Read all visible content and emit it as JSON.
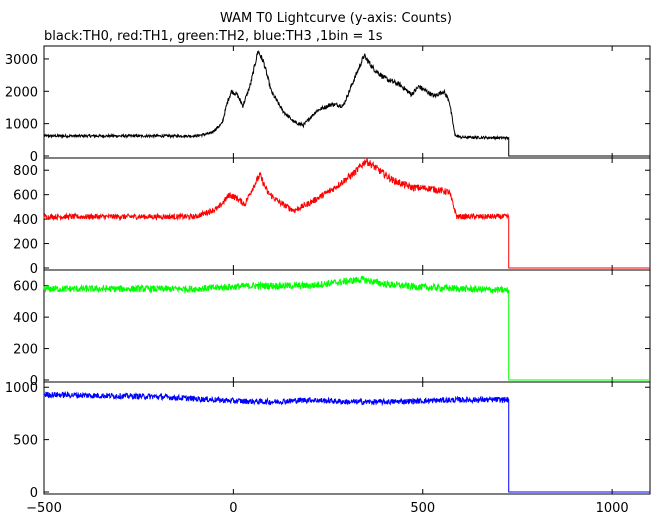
{
  "title": "WAM T0 Lightcurve (y-axis: Counts)",
  "subtitle": "black:TH0, red:TH1, green:TH2, blue:TH3 ,1bin = 1s",
  "chart_data": {
    "type": "line",
    "x_ticks": [
      -500,
      0,
      500,
      1000
    ],
    "x_tick_labels": [
      "−500",
      "0",
      "500",
      "1000"
    ],
    "xlim": [
      -500,
      1100
    ],
    "panels": [
      {
        "name": "TH0",
        "color": "#000000",
        "ylim": [
          0,
          3400
        ],
        "y_ticks": [
          0,
          1000,
          2000,
          3000
        ],
        "y_tick_labels": [
          "0",
          "1000",
          "2000",
          "3000"
        ],
        "noise": 40,
        "series_points": [
          [
            -500,
            620
          ],
          [
            -100,
            620
          ],
          [
            -60,
            700
          ],
          [
            -30,
            1000
          ],
          [
            -15,
            1700
          ],
          [
            -5,
            2000
          ],
          [
            10,
            1900
          ],
          [
            25,
            1550
          ],
          [
            45,
            2200
          ],
          [
            65,
            3250
          ],
          [
            80,
            2900
          ],
          [
            100,
            2000
          ],
          [
            130,
            1400
          ],
          [
            160,
            1050
          ],
          [
            185,
            950
          ],
          [
            220,
            1400
          ],
          [
            260,
            1600
          ],
          [
            290,
            1550
          ],
          [
            320,
            2400
          ],
          [
            345,
            3100
          ],
          [
            370,
            2700
          ],
          [
            400,
            2400
          ],
          [
            440,
            2200
          ],
          [
            470,
            1900
          ],
          [
            490,
            2150
          ],
          [
            510,
            2000
          ],
          [
            530,
            1850
          ],
          [
            555,
            2000
          ],
          [
            570,
            1700
          ],
          [
            585,
            650
          ],
          [
            600,
            580
          ],
          [
            725,
            560
          ],
          [
            727,
            0
          ],
          [
            1100,
            0
          ]
        ]
      },
      {
        "name": "TH1",
        "color": "#ff0000",
        "ylim": [
          0,
          900
        ],
        "y_ticks": [
          0,
          200,
          400,
          600,
          800
        ],
        "y_tick_labels": [
          "0",
          "200",
          "400",
          "600",
          "800"
        ],
        "noise": 22,
        "series_points": [
          [
            -500,
            420
          ],
          [
            -100,
            420
          ],
          [
            -40,
            490
          ],
          [
            -10,
            600
          ],
          [
            10,
            570
          ],
          [
            30,
            520
          ],
          [
            50,
            650
          ],
          [
            70,
            760
          ],
          [
            90,
            620
          ],
          [
            120,
            540
          ],
          [
            160,
            470
          ],
          [
            200,
            530
          ],
          [
            260,
            640
          ],
          [
            320,
            780
          ],
          [
            350,
            880
          ],
          [
            380,
            810
          ],
          [
            420,
            720
          ],
          [
            470,
            660
          ],
          [
            520,
            650
          ],
          [
            570,
            620
          ],
          [
            590,
            420
          ],
          [
            725,
            420
          ],
          [
            727,
            0
          ],
          [
            1100,
            0
          ]
        ]
      },
      {
        "name": "TH2",
        "color": "#00ff00",
        "ylim": [
          0,
          700
        ],
        "y_ticks": [
          0,
          200,
          400,
          600
        ],
        "y_tick_labels": [
          "0",
          "200",
          "400",
          "600"
        ],
        "noise": 22,
        "series_points": [
          [
            -500,
            580
          ],
          [
            -100,
            580
          ],
          [
            50,
            600
          ],
          [
            200,
            600
          ],
          [
            340,
            640
          ],
          [
            400,
            610
          ],
          [
            500,
            590
          ],
          [
            725,
            570
          ],
          [
            727,
            0
          ],
          [
            1100,
            0
          ]
        ]
      },
      {
        "name": "TH3",
        "color": "#0000ff",
        "ylim": [
          0,
          1050
        ],
        "y_ticks": [
          0,
          500,
          1000
        ],
        "y_tick_labels": [
          "0",
          "500",
          "1000"
        ],
        "noise": 28,
        "series_points": [
          [
            -500,
            930
          ],
          [
            -200,
            910
          ],
          [
            0,
            870
          ],
          [
            100,
            860
          ],
          [
            200,
            880
          ],
          [
            300,
            860
          ],
          [
            400,
            860
          ],
          [
            500,
            870
          ],
          [
            600,
            880
          ],
          [
            725,
            880
          ],
          [
            727,
            0
          ],
          [
            1100,
            0
          ]
        ]
      }
    ]
  }
}
